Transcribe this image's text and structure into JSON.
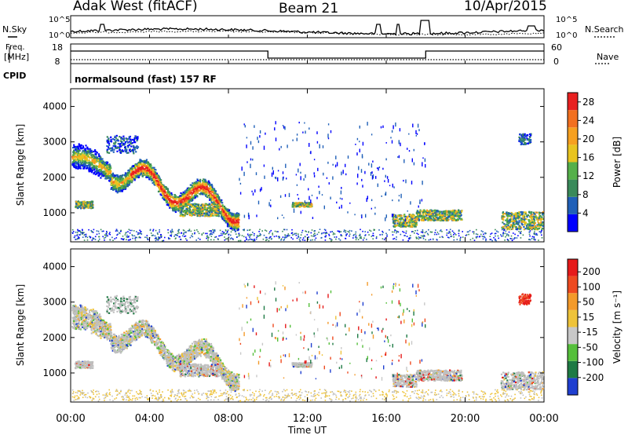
{
  "header": {
    "title": "Adak West (fitACF)",
    "beam": "Beam 21",
    "date": "10/Apr/2015"
  },
  "left_labels": {
    "nsky": "N.Sky",
    "freq_top": "Freq.",
    "freq_unit": "[MHz]",
    "cpid": "CPID"
  },
  "right_labels": {
    "nsearch": "N.Search",
    "nave": "Nave"
  },
  "cpid_text": "normalsound (fast) 157 RF",
  "colors": {
    "power_scale": [
      "#0000ff",
      "#2060b8",
      "#3a8a5a",
      "#55b04a",
      "#e8c420",
      "#f6a020",
      "#f27020",
      "#e82020"
    ],
    "velocity_scale": [
      "#1f3fd0",
      "#1e7a44",
      "#55bf3b",
      "#c8c8c8",
      "#eec33a",
      "#f39a2a",
      "#ee4a20",
      "#e61a1a"
    ],
    "ground_scatter": "#bfbfbf"
  },
  "chart_data": [
    {
      "type": "line",
      "name": "noise-panel",
      "left_ticks": [
        "10^5",
        "10^0"
      ],
      "right_ticks": [
        "10^5",
        "10^0"
      ],
      "x_range_hours": [
        0,
        24
      ]
    },
    {
      "type": "line",
      "name": "frequency-nave-panel",
      "left_ticks": [
        "18",
        "8"
      ],
      "right_ticks": [
        "60",
        "0"
      ],
      "frequency_steps_hours": [
        [
          0,
          10,
          "high"
        ],
        [
          10,
          18,
          "low"
        ],
        [
          18,
          24,
          "high"
        ]
      ]
    },
    {
      "type": "heatmap",
      "name": "power-panel",
      "ylabel": "Slant Range [km]",
      "yticks": [
        "4000",
        "3000",
        "2000",
        "1000"
      ],
      "ylim": [
        180,
        4500
      ],
      "colorbar": {
        "label": "Power [dB]",
        "ticks": [
          "28",
          "24",
          "20",
          "16",
          "12",
          "8",
          "4"
        ],
        "range": [
          0,
          30
        ]
      }
    },
    {
      "type": "heatmap",
      "name": "velocity-panel",
      "ylabel": "Slant Range [km]",
      "yticks": [
        "4000",
        "3000",
        "2000",
        "1000"
      ],
      "ylim": [
        180,
        4500
      ],
      "colorbar": {
        "label": "Velocity [m s⁻¹]",
        "ticks": [
          "200",
          "100",
          "50",
          "15",
          "-15",
          "-50",
          "-100",
          "-200"
        ],
        "range": [
          -250,
          250
        ]
      }
    }
  ],
  "xaxis": {
    "ticks": [
      "00:00",
      "04:00",
      "08:00",
      "12:00",
      "16:00",
      "20:00",
      "00:00"
    ],
    "label": "Time UT",
    "range_hours": [
      0,
      24
    ]
  }
}
